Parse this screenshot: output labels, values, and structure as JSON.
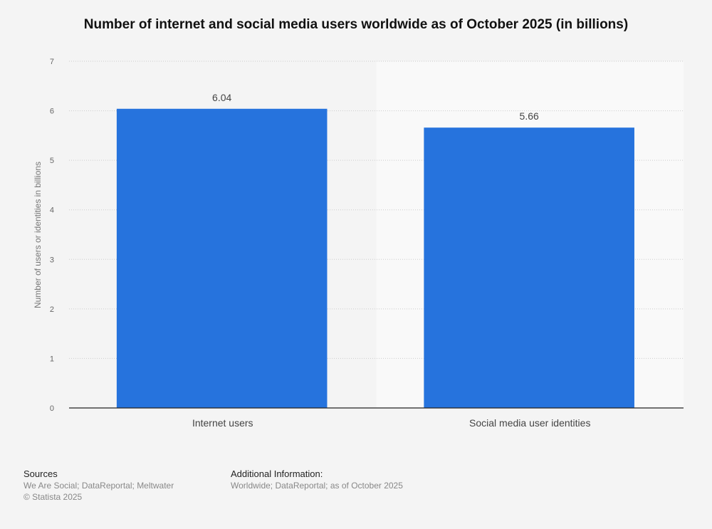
{
  "chart_data": {
    "type": "bar",
    "title": "Number of internet and social media users worldwide as of October 2025 (in billions)",
    "categories": [
      "Internet users",
      "Social media user identities"
    ],
    "values": [
      6.04,
      5.66
    ],
    "data_labels": [
      "6.04",
      "5.66"
    ],
    "xlabel": "",
    "ylabel": "Number of users or identities in billions",
    "ylim": [
      0,
      7
    ],
    "yticks": [
      "0",
      "1",
      "2",
      "3",
      "4",
      "5",
      "6",
      "7"
    ],
    "grid": true,
    "bar_color": "#2673dd"
  },
  "footer": {
    "sources_label": "Sources",
    "sources": "We Are Social; DataReportal; Meltwater",
    "copyright": "© Statista 2025",
    "additional_label": "Additional Information:",
    "additional": "Worldwide; DataReportal; as of October 2025"
  }
}
